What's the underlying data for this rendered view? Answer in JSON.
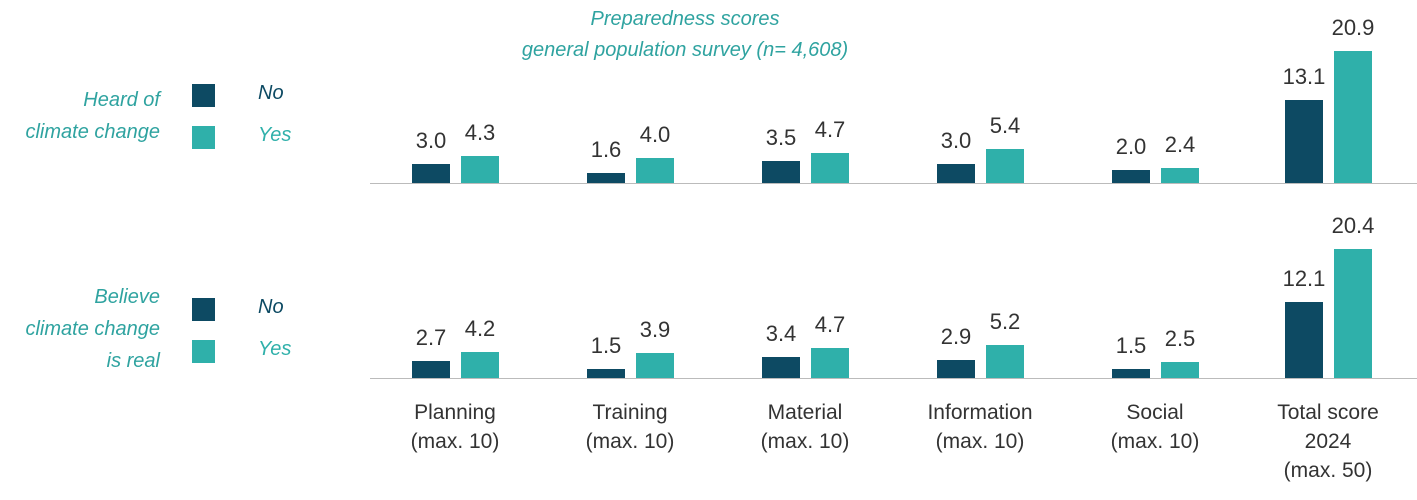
{
  "chart_data": [
    {
      "type": "bar",
      "title": "Preparedness scores",
      "subtitle": "general population survey (n= 4,608)",
      "group": "Heard of\nclimate change",
      "series": [
        {
          "name": "No",
          "color": "#0d4a63",
          "values": [
            3.0,
            1.6,
            3.5,
            3.0,
            2.0,
            13.1
          ],
          "value_labels": [
            "3.0",
            "1.6",
            "3.5",
            "3.0",
            "2.0",
            "13.1"
          ]
        },
        {
          "name": "Yes",
          "color": "#2fb0aa",
          "values": [
            4.3,
            4.0,
            4.7,
            5.4,
            2.4,
            20.9
          ],
          "value_labels": [
            "4.3",
            "4.0",
            "4.7",
            "5.4",
            "2.4",
            "20.9"
          ]
        }
      ]
    },
    {
      "type": "bar",
      "group": "Believe\nclimate change\nis real",
      "categories": [
        "Planning\n(max. 10)",
        "Training\n(max. 10)",
        "Material\n(max. 10)",
        "Information\n(max. 10)",
        "Social\n(max. 10)",
        "Total score\n2024\n(max. 50)"
      ],
      "series": [
        {
          "name": "No",
          "color": "#0d4a63",
          "values": [
            2.7,
            1.5,
            3.4,
            2.9,
            1.5,
            12.1
          ],
          "value_labels": [
            "2.7",
            "1.5",
            "3.4",
            "2.9",
            "1.5",
            "12.1"
          ]
        },
        {
          "name": "Yes",
          "color": "#2fb0aa",
          "values": [
            4.2,
            3.9,
            4.7,
            5.2,
            2.5,
            20.4
          ],
          "value_labels": [
            "4.2",
            "3.9",
            "4.7",
            "5.2",
            "2.5",
            "20.4"
          ]
        }
      ]
    }
  ]
}
